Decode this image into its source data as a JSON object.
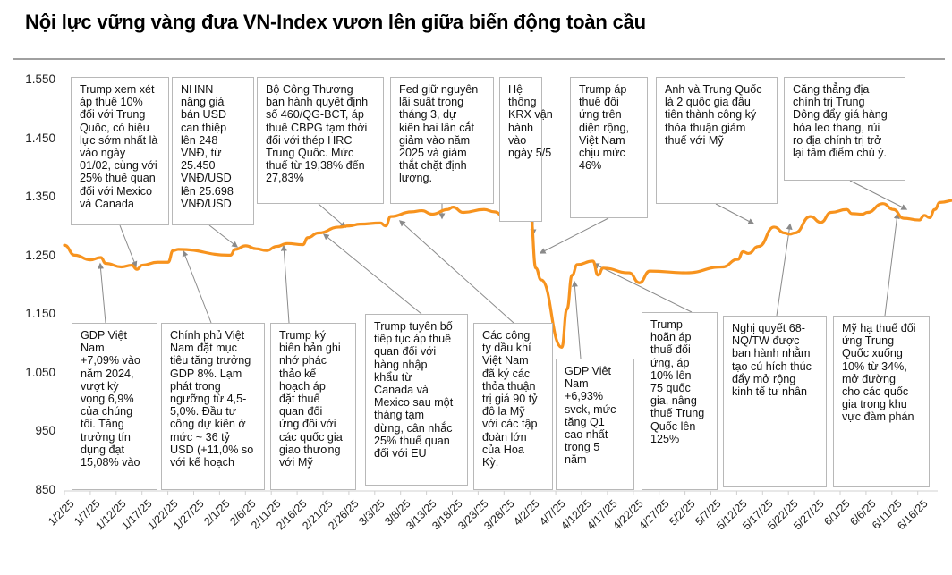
{
  "title": "Nội lực vững vàng đưa VN-Index vươn lên giữa biến động toàn cầu",
  "chart_data": {
    "type": "line",
    "title": "Nội lực vững vàng đưa VN-Index vươn lên giữa biến động toàn cầu",
    "series_name": "VN-Index",
    "line_color": "#F7931E",
    "xlabel": "",
    "ylabel": "",
    "ylim": [
      850,
      1550
    ],
    "yticks": [
      "1.550",
      "1.450",
      "1.350",
      "1.250",
      "1.150",
      "1.050",
      "950",
      "850"
    ],
    "xticks": [
      "1/2/25",
      "1/7/25",
      "1/12/25",
      "1/17/25",
      "1/22/25",
      "1/27/25",
      "2/1/25",
      "2/6/25",
      "2/11/25",
      "2/16/25",
      "2/21/25",
      "2/26/25",
      "3/3/25",
      "3/8/25",
      "3/13/25",
      "3/18/25",
      "3/23/25",
      "3/28/25",
      "4/2/25",
      "4/7/25",
      "4/12/25",
      "4/17/25",
      "4/22/25",
      "4/27/25",
      "5/2/25",
      "5/7/25",
      "5/12/25",
      "5/17/25",
      "5/22/25",
      "5/27/25",
      "6/1/25",
      "6/6/25",
      "6/11/25",
      "6/16/25"
    ],
    "grid": false,
    "points": [
      {
        "x": "1/2/25",
        "y": 1269
      },
      {
        "x": "1/4/25",
        "y": 1252
      },
      {
        "x": "1/7/25",
        "y": 1244
      },
      {
        "x": "1/9/25",
        "y": 1248
      },
      {
        "x": "1/10/25",
        "y": 1238
      },
      {
        "x": "1/13/25",
        "y": 1232
      },
      {
        "x": "1/15/25",
        "y": 1235
      },
      {
        "x": "1/16/25",
        "y": 1228
      },
      {
        "x": "1/17/25",
        "y": 1235
      },
      {
        "x": "1/20/25",
        "y": 1240
      },
      {
        "x": "1/22/25",
        "y": 1240
      },
      {
        "x": "1/23/25",
        "y": 1260
      },
      {
        "x": "1/24/25",
        "y": 1262
      },
      {
        "x": "2/3/25",
        "y": 1252
      },
      {
        "x": "2/4/25",
        "y": 1262
      },
      {
        "x": "2/6/25",
        "y": 1268
      },
      {
        "x": "2/8/25",
        "y": 1263
      },
      {
        "x": "2/10/25",
        "y": 1260
      },
      {
        "x": "2/12/25",
        "y": 1267
      },
      {
        "x": "2/14/25",
        "y": 1272
      },
      {
        "x": "2/17/25",
        "y": 1270
      },
      {
        "x": "2/18/25",
        "y": 1282
      },
      {
        "x": "2/20/25",
        "y": 1290
      },
      {
        "x": "2/24/25",
        "y": 1300
      },
      {
        "x": "2/26/25",
        "y": 1302
      },
      {
        "x": "2/28/25",
        "y": 1305
      },
      {
        "x": "3/4/25",
        "y": 1307
      },
      {
        "x": "3/5/25",
        "y": 1302
      },
      {
        "x": "3/6/25",
        "y": 1318
      },
      {
        "x": "3/10/25",
        "y": 1326
      },
      {
        "x": "3/12/25",
        "y": 1328
      },
      {
        "x": "3/14/25",
        "y": 1322
      },
      {
        "x": "3/17/25",
        "y": 1330
      },
      {
        "x": "3/18/25",
        "y": 1334
      },
      {
        "x": "3/20/25",
        "y": 1325
      },
      {
        "x": "3/24/25",
        "y": 1330
      },
      {
        "x": "3/26/25",
        "y": 1326
      },
      {
        "x": "3/28/25",
        "y": 1317
      },
      {
        "x": "3/31/25",
        "y": 1315
      },
      {
        "x": "4/1/25",
        "y": 1320
      },
      {
        "x": "4/2/25",
        "y": 1317
      },
      {
        "x": "4/3/25",
        "y": 1230
      },
      {
        "x": "4/4/25",
        "y": 1210
      },
      {
        "x": "4/8/25",
        "y": 1095
      },
      {
        "x": "4/9/25",
        "y": 1160
      },
      {
        "x": "4/10/25",
        "y": 1218
      },
      {
        "x": "4/11/25",
        "y": 1236
      },
      {
        "x": "4/14/25",
        "y": 1242
      },
      {
        "x": "4/15/25",
        "y": 1218
      },
      {
        "x": "4/16/25",
        "y": 1230
      },
      {
        "x": "4/21/25",
        "y": 1222
      },
      {
        "x": "4/23/25",
        "y": 1205
      },
      {
        "x": "4/25/25",
        "y": 1225
      },
      {
        "x": "5/2/25",
        "y": 1222
      },
      {
        "x": "5/9/25",
        "y": 1232
      },
      {
        "x": "5/12/25",
        "y": 1245
      },
      {
        "x": "5/13/25",
        "y": 1258
      },
      {
        "x": "5/14/25",
        "y": 1255
      },
      {
        "x": "5/16/25",
        "y": 1267
      },
      {
        "x": "5/19/25",
        "y": 1300
      },
      {
        "x": "5/21/25",
        "y": 1290
      },
      {
        "x": "5/22/25",
        "y": 1288
      },
      {
        "x": "5/23/25",
        "y": 1290
      },
      {
        "x": "5/26/25",
        "y": 1318
      },
      {
        "x": "5/28/25",
        "y": 1308
      },
      {
        "x": "5/30/25",
        "y": 1325
      },
      {
        "x": "6/2/25",
        "y": 1330
      },
      {
        "x": "6/3/25",
        "y": 1323
      },
      {
        "x": "6/5/25",
        "y": 1322
      },
      {
        "x": "6/6/25",
        "y": 1325
      },
      {
        "x": "6/9/25",
        "y": 1340
      },
      {
        "x": "6/11/25",
        "y": 1330
      },
      {
        "x": "6/13/25",
        "y": 1315
      },
      {
        "x": "6/16/25",
        "y": 1312
      },
      {
        "x": "6/17/25",
        "y": 1320
      },
      {
        "x": "6/18/25",
        "y": 1316
      },
      {
        "x": "6/19/25",
        "y": 1330
      },
      {
        "x": "6/20/25",
        "y": 1342
      },
      {
        "x": "6/23/25",
        "y": 1346
      },
      {
        "x": "6/24/25",
        "y": 1352
      }
    ],
    "annotations": [
      {
        "position": "top",
        "text": "Trump xem xét áp thuế 10% đối với Trung Quốc, có hiệu lực sớm nhất là vào ngày 01/02, cùng với 25% thuế quan đối với Mexico và Canada"
      },
      {
        "position": "top",
        "text": "NHNN nâng giá bán USD can thiệp lên 248 VNĐ, từ 25.450 VNĐ/USD lên  25.698 VNĐ/USD"
      },
      {
        "position": "top",
        "text": "Bộ Công Thương ban hành quyết định số 460/QG-BCT, áp thuế CBPG tạm thời đối với thép HRC Trung Quốc. Mức thuế từ 19,38% đến 27,83%"
      },
      {
        "position": "top",
        "text": "Fed giữ nguyên lãi suất trong tháng 3, dự kiến hai lần cắt giảm vào năm 2025 và giảm thắt chặt định lượng."
      },
      {
        "position": "top",
        "text": "Hệ thống KRX vận hành vào ngày 5/5"
      },
      {
        "position": "top",
        "text": "Trump áp thuế đối ứng trên diện rộng, Việt Nam chịu mức 46%"
      },
      {
        "position": "top",
        "text": "Anh và Trung Quốc là 2 quốc gia đầu tiên thành công ký thỏa thuận giảm thuế với Mỹ"
      },
      {
        "position": "top",
        "text": "Căng thẳng địa chính trị Trung Đông đẩy giá hàng hóa leo thang, rủi ro địa chính trị trở lại tâm điểm chú ý."
      },
      {
        "position": "bottom",
        "text": "GDP Việt Nam +7,09% vào năm 2024, vượt kỳ vọng 6,9% của chúng tôi. Tăng trưởng tín dụng đạt 15,08% vào"
      },
      {
        "position": "bottom",
        "text": "Chính phủ Việt Nam đặt mục tiêu tăng trưởng GDP 8%. Lạm phát trong ngưỡng từ 4,5-5,0%. Đầu tư công dự kiến ở mức ~ 36 tỷ USD (+11,0% so với kế hoạch"
      },
      {
        "position": "bottom",
        "text": "Trump ký biên bản ghi nhớ phác thảo kế hoạch áp đặt thuế quan đối ứng đối với các quốc gia giao thương với Mỹ"
      },
      {
        "position": "bottom",
        "text": "Trump tuyên bố tiếp tục áp thuế quan đối với hàng nhập khẩu từ Canada và Mexico sau một tháng tạm dừng, cân nhắc 25% thuế quan đối với EU"
      },
      {
        "position": "bottom",
        "text": "Các công ty dầu khí Việt Nam đã ký các thỏa thuận trị giá 90 tỷ đô la Mỹ với các tập đoàn lớn của Hoa Kỳ."
      },
      {
        "position": "bottom",
        "text": "GDP Việt Nam +6,93% svck, mức tăng Q1 cao nhất trong 5 năm"
      },
      {
        "position": "bottom",
        "text": "Trump hoãn áp thuế đối ứng, áp 10% lên 75 quốc gia, nâng thuế Trung Quốc lên 125%"
      },
      {
        "position": "bottom",
        "text": "Nghị quyết 68-NQ/TW được ban hành nhằm tạo cú hích thúc đẩy mở rộng kinh tế tư nhân"
      },
      {
        "position": "bottom",
        "text": "Mỹ hạ thuế đối ứng Trung Quốc xuống 10% từ 34%, mở đường cho các quốc gia trong khu vực đàm phán"
      }
    ]
  },
  "boxes_top": [
    {
      "lines": [
        "Trump xem xét",
        "áp thuế 10%",
        "đối với Trung",
        "Quốc, có hiệu",
        "lực sớm nhất là",
        "vào ngày",
        "01/02, cùng với",
        "25% thuế quan",
        "đối với Mexico",
        "và Canada"
      ]
    },
    {
      "lines": [
        "NHNN",
        "nâng giá",
        "bán USD",
        "can thiệp",
        "lên 248",
        "VNĐ, từ",
        "25.450",
        "VNĐ/USD",
        "lên  25.698",
        "VNĐ/USD"
      ]
    },
    {
      "lines": [
        "Bộ Công Thương",
        "ban hành quyết định",
        "số 460/QG-BCT, áp",
        "thuế CBPG tạm thời",
        "đối với thép HRC",
        "Trung Quốc. Mức",
        "thuế từ 19,38% đến",
        "27,83%"
      ]
    },
    {
      "lines": [
        "Fed giữ nguyên",
        "lãi suất trong",
        "tháng 3, dự",
        "kiến hai lần cắt",
        "giảm vào năm",
        "2025 và giảm",
        "thắt chặt định",
        "lượng."
      ]
    },
    {
      "lines": [
        "Hệ",
        "thống",
        "KRX vận",
        "hành",
        "vào",
        "ngày 5/5"
      ]
    },
    {
      "lines": [
        "Trump áp",
        "thuế đối",
        "ứng trên",
        "diện rộng,",
        "Việt Nam",
        "chịu mức",
        "46%"
      ]
    },
    {
      "lines": [
        "Anh và Trung Quốc",
        "là 2 quốc gia đầu",
        "tiên thành công ký",
        "thỏa thuận giảm",
        "thuế với Mỹ"
      ]
    },
    {
      "lines": [
        "Căng thẳng địa",
        "chính trị Trung",
        "Đông đẩy giá hàng",
        "hóa leo thang, rủi",
        "ro địa chính trị trở",
        "lại tâm điểm chú ý."
      ]
    }
  ],
  "boxes_bottom": [
    {
      "lines": [
        "GDP Việt",
        "Nam",
        "+7,09% vào",
        "năm 2024,",
        "vượt kỳ",
        "vọng 6,9%",
        "của chúng",
        "tôi. Tăng",
        "trưởng tín",
        "dụng đạt",
        "15,08% vào"
      ]
    },
    {
      "lines": [
        "Chính phủ Việt",
        "Nam đặt mục",
        "tiêu tăng trưởng",
        "GDP 8%. Lạm",
        "phát trong",
        "ngưỡng từ 4,5-",
        "5,0%. Đầu tư",
        "công dự kiến ở",
        "mức ~ 36 tỷ",
        "USD (+11,0% so",
        "với kế hoạch"
      ]
    },
    {
      "lines": [
        "Trump ký",
        "biên bản ghi",
        "nhớ phác",
        "thảo kế",
        "hoạch áp",
        "đặt thuế",
        "quan đối",
        "ứng đối với",
        "các quốc gia",
        "giao thương",
        "với Mỹ"
      ]
    },
    {
      "lines": [
        "Trump tuyên bố",
        "tiếp tục áp thuế",
        "quan đối với",
        "hàng nhập",
        "khẩu từ",
        "Canada và",
        "Mexico sau một",
        "tháng tạm",
        "dừng, cân nhắc",
        "25% thuế quan",
        "đối với EU"
      ]
    },
    {
      "lines": [
        "Các công",
        "ty dầu khí",
        "Việt Nam",
        "đã ký các",
        "thỏa thuận",
        "trị giá 90 tỷ",
        "đô la Mỹ",
        "với các tập",
        "đoàn lớn",
        "của Hoa",
        "Kỳ."
      ]
    },
    {
      "lines": [
        "GDP Việt",
        "Nam",
        "+6,93%",
        "svck, mức",
        "tăng Q1",
        "cao nhất",
        "trong 5",
        "năm"
      ]
    },
    {
      "lines": [
        "Trump",
        "hoãn áp",
        "thuế đối",
        "ứng, áp",
        "10% lên",
        "75 quốc",
        "gia, nâng",
        "thuế Trung",
        "Quốc lên",
        "125%"
      ]
    },
    {
      "lines": [
        "Nghị quyết 68-",
        "NQ/TW được",
        "ban hành nhằm",
        "tạo cú hích thúc",
        "đẩy mở rộng",
        "kinh tế tư nhân"
      ]
    },
    {
      "lines": [
        "Mỹ hạ thuế đối",
        "ứng Trung",
        "Quốc xuống",
        "10% từ 34%,",
        "mở đường",
        "cho các quốc",
        "gia trong khu",
        "vực đàm phán"
      ]
    }
  ]
}
